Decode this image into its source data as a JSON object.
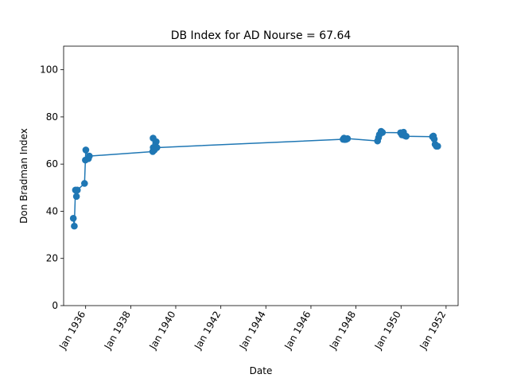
{
  "chart_data": {
    "type": "line",
    "title": "DB Index for AD Nourse = 67.64",
    "xlabel": "Date",
    "ylabel": "Don Bradman Index",
    "ylim": [
      0,
      110
    ],
    "xlim": [
      "1935-01-09",
      "1952-07-14"
    ],
    "y_ticks": [
      0,
      20,
      40,
      60,
      80,
      100
    ],
    "x_ticks": [
      {
        "date": "1936-01-01",
        "label": "Jan 1936"
      },
      {
        "date": "1938-01-01",
        "label": "Jan 1938"
      },
      {
        "date": "1940-01-01",
        "label": "Jan 1940"
      },
      {
        "date": "1942-01-01",
        "label": "Jan 1942"
      },
      {
        "date": "1944-01-01",
        "label": "Jan 1944"
      },
      {
        "date": "1946-01-01",
        "label": "Jan 1946"
      },
      {
        "date": "1948-01-01",
        "label": "Jan 1948"
      },
      {
        "date": "1950-01-01",
        "label": "Jan 1950"
      },
      {
        "date": "1952-01-01",
        "label": "Jan 1952"
      }
    ],
    "grid": false,
    "series": [
      {
        "color": "#1f77b4",
        "points": [
          {
            "x": "1935-06-15",
            "y": 37
          },
          {
            "x": "1935-07-01",
            "y": 33.7
          },
          {
            "x": "1935-07-20",
            "y": 49
          },
          {
            "x": "1935-08-05",
            "y": 46.3
          },
          {
            "x": "1935-08-20",
            "y": 49
          },
          {
            "x": "1935-12-14",
            "y": 51.8
          },
          {
            "x": "1935-12-28",
            "y": 61.7
          },
          {
            "x": "1936-01-04",
            "y": 66
          },
          {
            "x": "1936-02-15",
            "y": 62.3
          },
          {
            "x": "1936-03-01",
            "y": 63.4
          },
          {
            "x": "1938-12-24",
            "y": 65.3
          },
          {
            "x": "1938-12-30",
            "y": 71
          },
          {
            "x": "1939-01-01",
            "y": 67
          },
          {
            "x": "1939-01-20",
            "y": 66
          },
          {
            "x": "1939-02-18",
            "y": 69.5
          },
          {
            "x": "1939-03-01",
            "y": 67
          },
          {
            "x": "1947-06-07",
            "y": 70.5
          },
          {
            "x": "1947-06-21",
            "y": 71
          },
          {
            "x": "1947-07-05",
            "y": 70.4
          },
          {
            "x": "1947-07-26",
            "y": 70.5
          },
          {
            "x": "1947-08-16",
            "y": 70.8
          },
          {
            "x": "1948-12-16",
            "y": 69.8
          },
          {
            "x": "1949-01-01",
            "y": 71.2
          },
          {
            "x": "1949-01-15",
            "y": 72.5
          },
          {
            "x": "1949-02-12",
            "y": 73.9
          },
          {
            "x": "1949-03-05",
            "y": 73.4
          },
          {
            "x": "1949-12-24",
            "y": 73.3
          },
          {
            "x": "1950-01-15",
            "y": 72.4
          },
          {
            "x": "1950-02-10",
            "y": 73.5
          },
          {
            "x": "1950-03-04",
            "y": 72
          },
          {
            "x": "1950-03-25",
            "y": 71.8
          },
          {
            "x": "1951-05-26",
            "y": 71.6
          },
          {
            "x": "1951-06-09",
            "y": 71.9
          },
          {
            "x": "1951-06-23",
            "y": 70.6
          },
          {
            "x": "1951-07-07",
            "y": 68.4
          },
          {
            "x": "1951-07-28",
            "y": 67.6
          },
          {
            "x": "1951-08-18",
            "y": 67.6
          }
        ]
      }
    ]
  }
}
